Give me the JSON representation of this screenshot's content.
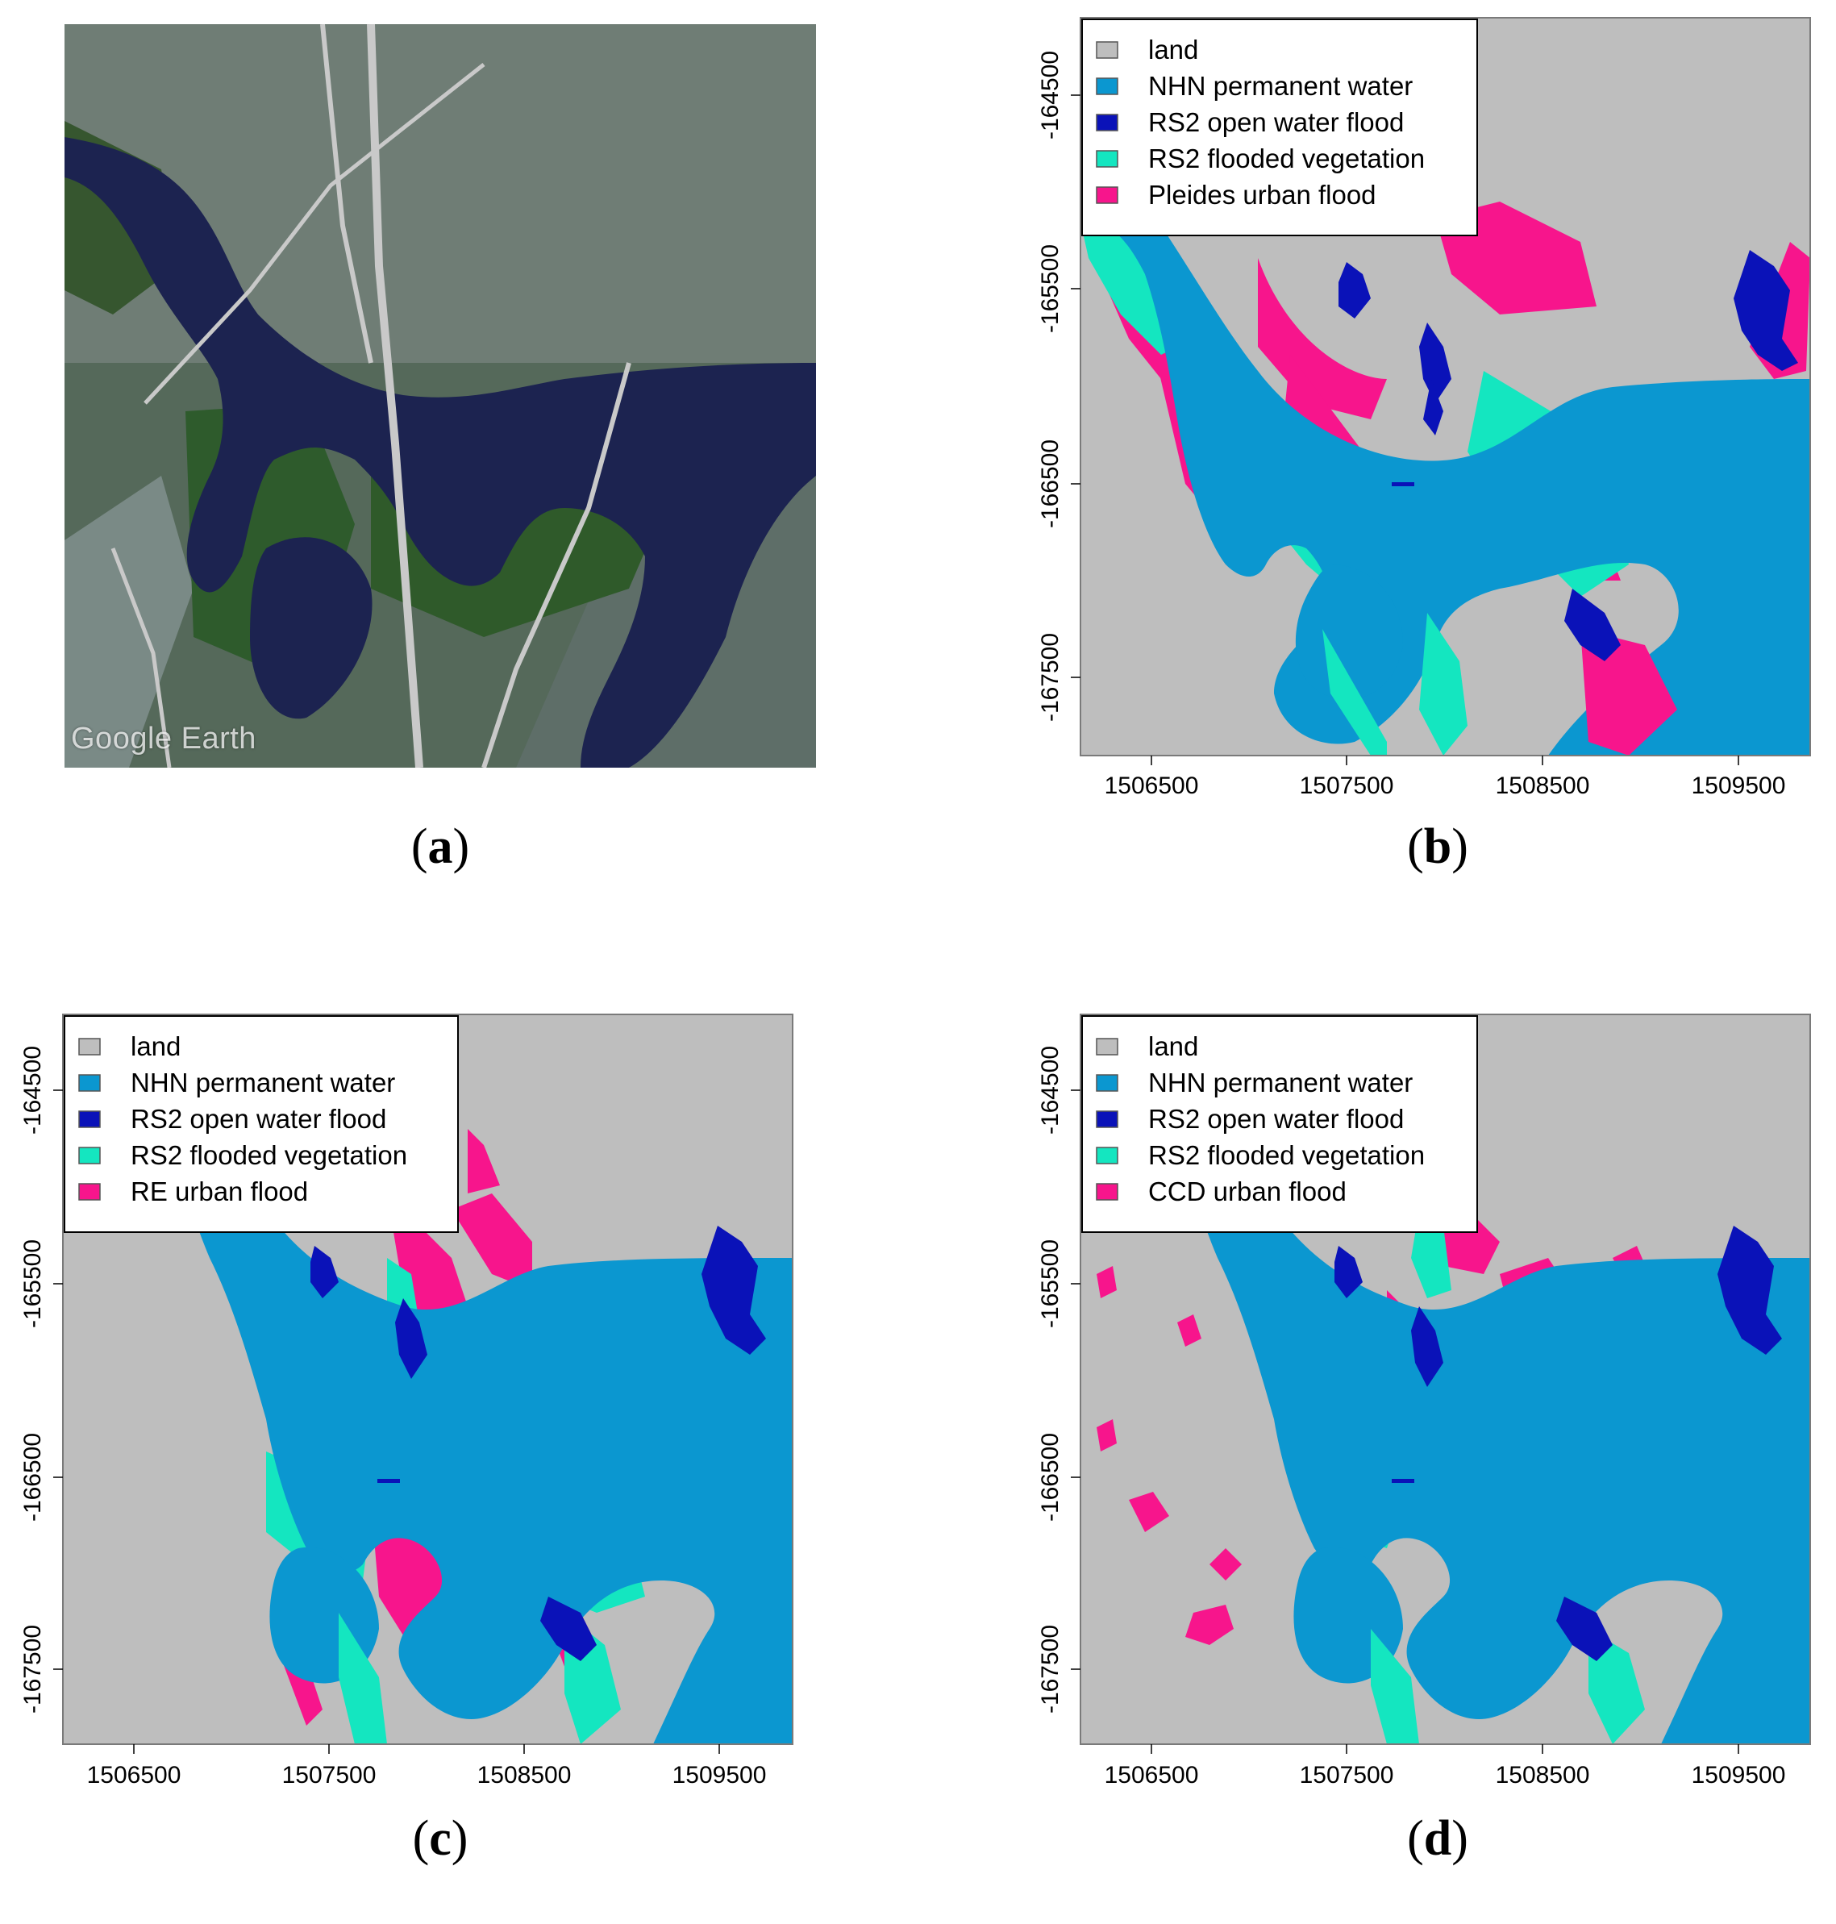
{
  "panel_a": {
    "watermark": "Google Earth",
    "caption": "a"
  },
  "panel_b": {
    "caption": "b",
    "legend": [
      "land",
      "NHN permanent water",
      "RS2 open water flood",
      "RS2 flooded vegetation",
      "Pleides urban flood"
    ],
    "y_ticks": [
      "-164500",
      "-165500",
      "-166500",
      "-167500"
    ],
    "x_ticks": [
      "1506500",
      "1507500",
      "1508500",
      "1509500"
    ]
  },
  "panel_c": {
    "caption": "c",
    "legend": [
      "land",
      "NHN permanent water",
      "RS2 open water flood",
      "RS2 flooded vegetation",
      "RE urban flood"
    ],
    "y_ticks": [
      "-164500",
      "-165500",
      "-166500",
      "-167500"
    ],
    "x_ticks": [
      "1506500",
      "1507500",
      "1508500",
      "1509500"
    ]
  },
  "panel_d": {
    "caption": "d",
    "legend": [
      "land",
      "NHN permanent water",
      "RS2 open water flood",
      "RS2 flooded vegetation",
      "CCD urban flood"
    ],
    "y_ticks": [
      "-164500",
      "-165500",
      "-166500",
      "-167500"
    ],
    "x_ticks": [
      "1506500",
      "1507500",
      "1508500",
      "1509500"
    ]
  },
  "colors": {
    "land": "#bebebe",
    "permanent_water": "#0b97d0",
    "open_water_flood": "#0a12b8",
    "flooded_vegetation": "#14e6c0",
    "urban_flood": "#f7158c"
  }
}
